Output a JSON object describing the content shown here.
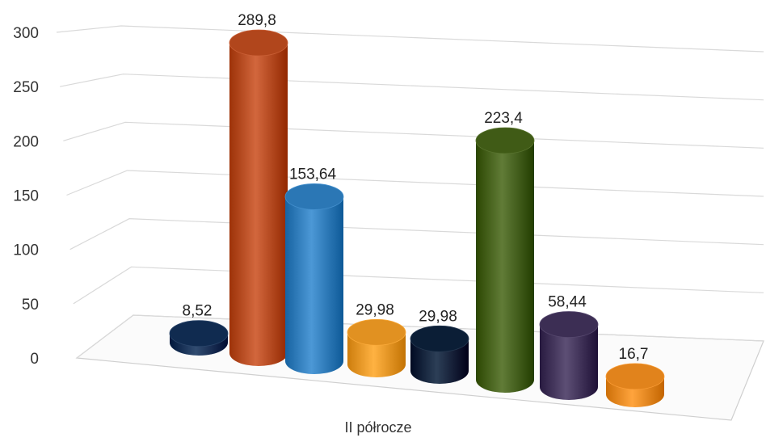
{
  "chart_data": {
    "type": "bar",
    "style": "3d-cylinder",
    "categories": [
      "II półrocze"
    ],
    "ylim": [
      0,
      300
    ],
    "yticks": [
      "0",
      "50",
      "100",
      "150",
      "200",
      "250",
      "300"
    ],
    "grid": true,
    "series": [
      {
        "value": 8.52,
        "label": "8,52",
        "color": "#1f3a5f"
      },
      {
        "value": 289.8,
        "label": "289,8",
        "color": "#c0552b"
      },
      {
        "value": 153.64,
        "label": "153,64",
        "color": "#3a86c4"
      },
      {
        "value": 29.98,
        "label": "29,98",
        "color": "#f0a030"
      },
      {
        "value": 29.98,
        "label": "29,98",
        "color": "#1a2d45"
      },
      {
        "value": 223.4,
        "label": "223,4",
        "color": "#4f6a25"
      },
      {
        "value": 58.44,
        "label": "58,44",
        "color": "#4b3d63"
      },
      {
        "value": 16.7,
        "label": "16,7",
        "color": "#f0922b"
      }
    ]
  }
}
